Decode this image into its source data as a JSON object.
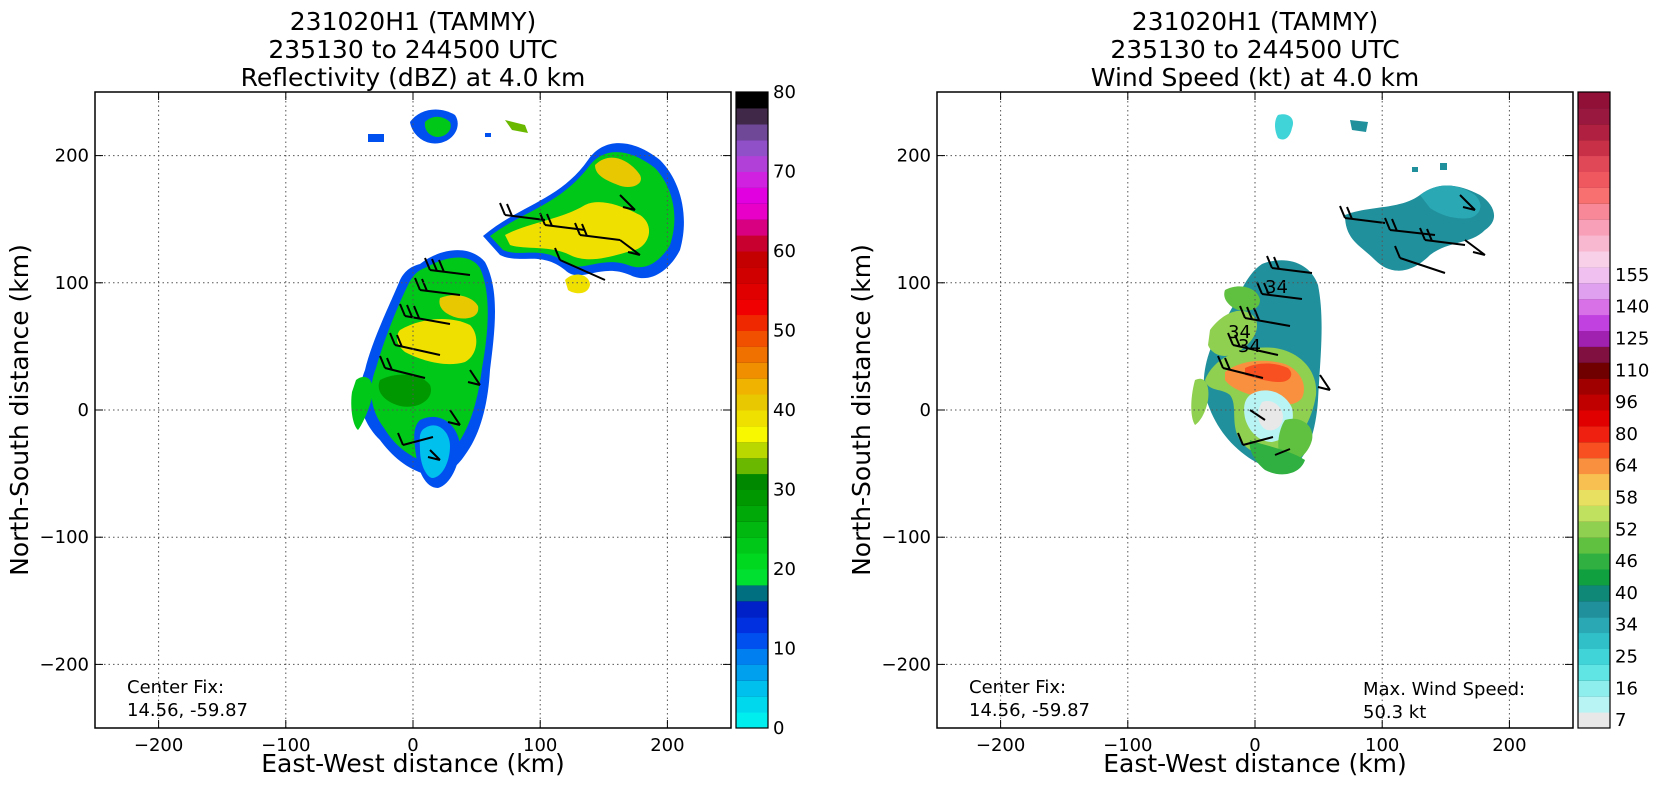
{
  "chart_data": [
    {
      "type": "heatmap",
      "title_lines": [
        "231020H1 (TAMMY)",
        "235130 to 244500 UTC",
        "Reflectivity (dBZ) at 4.0 km"
      ],
      "xlabel": "East-West distance (km)",
      "ylabel": "North-South distance (km)",
      "xlim": [
        -250,
        250
      ],
      "ylim": [
        -250,
        250
      ],
      "x_ticks": [
        -200,
        -100,
        0,
        100,
        200
      ],
      "y_ticks": [
        -200,
        -100,
        0,
        100,
        200
      ],
      "x_tick_labels": [
        "−200",
        "−100",
        "0",
        "100",
        "200"
      ],
      "y_tick_labels": [
        "−200",
        "−100",
        "0",
        "100",
        "200"
      ],
      "grid": true,
      "colorbar": {
        "range": [
          0,
          80
        ],
        "tick_values": [
          0,
          10,
          20,
          30,
          40,
          50,
          60,
          70,
          80
        ],
        "tick_labels": [
          "0",
          "10",
          "20",
          "30",
          "40",
          "50",
          "60",
          "70",
          "80"
        ],
        "colors": [
          "#00eeee",
          "#00d8ee",
          "#00c0ee",
          "#00a0ee",
          "#0080f0",
          "#0050f0",
          "#0030e0",
          "#0020c8",
          "#007080",
          "#00e030",
          "#00d820",
          "#00c818",
          "#00b810",
          "#00a808",
          "#009800",
          "#008800",
          "#6ab800",
          "#b8d800",
          "#f8f800",
          "#f0e000",
          "#e8c800",
          "#f0b400",
          "#f09000",
          "#f07000",
          "#f05000",
          "#f02800",
          "#f00000",
          "#e00000",
          "#d00000",
          "#c40000",
          "#c80030",
          "#d80080",
          "#e800c8",
          "#e000e0",
          "#d020e0",
          "#b040d8",
          "#9050c8",
          "#704898",
          "#402848",
          "#000000"
        ]
      },
      "annotations": [
        "Center Fix:",
        "14.56, -59.87"
      ]
    },
    {
      "type": "heatmap",
      "title_lines": [
        "231020H1 (TAMMY)",
        "235130 to 244500 UTC",
        "Wind Speed (kt) at 4.0 km"
      ],
      "xlabel": "East-West distance (km)",
      "ylabel": "North-South distance (km)",
      "xlim": [
        -250,
        250
      ],
      "ylim": [
        -250,
        250
      ],
      "x_ticks": [
        -200,
        -100,
        0,
        100,
        200
      ],
      "y_ticks": [
        -200,
        -100,
        0,
        100,
        200
      ],
      "x_tick_labels": [
        "−200",
        "−100",
        "0",
        "100",
        "200"
      ],
      "y_tick_labels": [
        "−200",
        "−100",
        "0",
        "100",
        "200"
      ],
      "grid": true,
      "contour_labels": [
        "34",
        "34",
        "34"
      ],
      "colorbar": {
        "tick_labels": [
          "7",
          "16",
          "25",
          "34",
          "40",
          "46",
          "52",
          "58",
          "64",
          "80",
          "96",
          "110",
          "125",
          "140",
          "155"
        ],
        "tick_bins": [
          0,
          2,
          4,
          6,
          8,
          10,
          12,
          14,
          16,
          18,
          20,
          22,
          24,
          26,
          28
        ],
        "colors": [
          "#e8e8e8",
          "#b8f4f4",
          "#8eeeee",
          "#60e4e4",
          "#40d4d8",
          "#30c0c8",
          "#2aa8b4",
          "#20909c",
          "#108878",
          "#10a040",
          "#30b040",
          "#60c040",
          "#90d050",
          "#c0e060",
          "#e8e060",
          "#f8c050",
          "#f89040",
          "#f85020",
          "#f02010",
          "#e00000",
          "#c00000",
          "#a00000",
          "#700000",
          "#801040",
          "#a020b0",
          "#c040e0",
          "#d870e8",
          "#e0a0f0",
          "#f0c0f0",
          "#f8d0e8",
          "#f8b8d0",
          "#f8a0b8",
          "#f88898",
          "#f87070",
          "#f05860",
          "#e04858",
          "#c83048",
          "#b02040",
          "#981840",
          "#901038"
        ]
      },
      "annotations": [
        "Center Fix:",
        "14.56, -59.87"
      ],
      "max_wind_label": "Max. Wind Speed:",
      "max_wind_value": "50.3 kt"
    }
  ]
}
